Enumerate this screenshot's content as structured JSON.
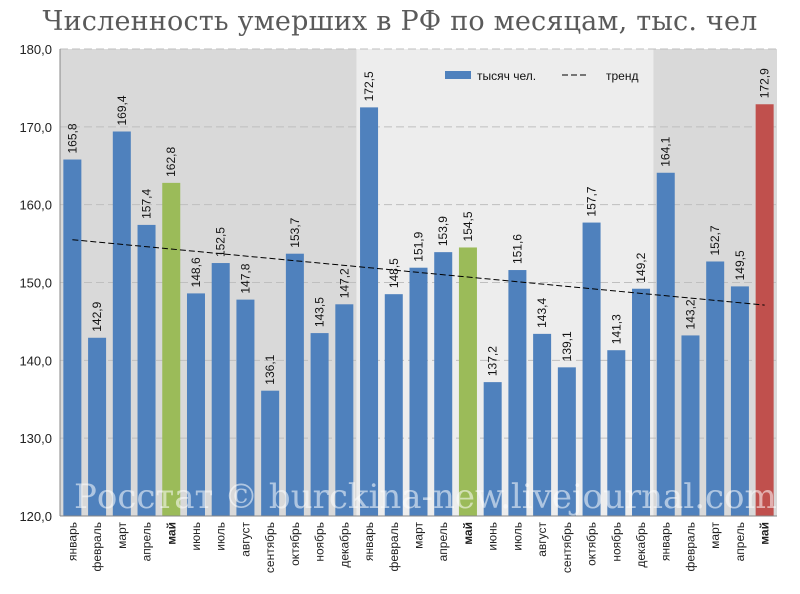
{
  "chart_data": {
    "type": "bar",
    "title": "Численность умерших в РФ по месяцам, тыс. чел",
    "xlabel": "",
    "ylabel": "",
    "ylim": [
      120,
      180
    ],
    "yticks": [
      "120,0",
      "130,0",
      "140,0",
      "150,0",
      "160,0",
      "170,0",
      "180,0"
    ],
    "grid": true,
    "legend_position": "top-right",
    "categories": [
      "январь",
      "февраль",
      "март",
      "апрель",
      "май",
      "июнь",
      "июль",
      "август",
      "сентябрь",
      "октябрь",
      "ноябрь",
      "декабрь",
      "январь",
      "февраль",
      "март",
      "апрель",
      "май",
      "июнь",
      "июль",
      "август",
      "сентябрь",
      "октябрь",
      "ноябрь",
      "декабрь",
      "январь",
      "февраль",
      "март",
      "апрель",
      "май"
    ],
    "bold_categories": [
      4,
      16,
      28
    ],
    "series": [
      {
        "name": "тысяч чел.",
        "values": [
          165.8,
          142.9,
          169.4,
          157.4,
          162.8,
          148.6,
          152.5,
          147.8,
          136.1,
          153.7,
          143.5,
          147.2,
          172.5,
          148.5,
          151.9,
          153.9,
          154.5,
          137.2,
          151.6,
          143.4,
          139.1,
          157.7,
          141.3,
          149.2,
          164.1,
          143.2,
          152.7,
          149.5,
          172.9
        ],
        "labels": [
          "165,8",
          "142,9",
          "169,4",
          "157,4",
          "162,8",
          "148,6",
          "152,5",
          "147,8",
          "136,1",
          "153,7",
          "143,5",
          "147,2",
          "172,5",
          "148,5",
          "151,9",
          "153,9",
          "154,5",
          "137,2",
          "151,6",
          "143,4",
          "139,1",
          "157,7",
          "141,3",
          "149,2",
          "164,1",
          "143,2",
          "152,7",
          "149,5",
          "172,9"
        ]
      },
      {
        "name": "тренд",
        "type": "line",
        "style": "dashed",
        "start": 155.5,
        "end": 147.1
      }
    ],
    "colors": {
      "bar": "#4f81bd",
      "may": "#9bbb59",
      "latest_may": "#c0504d",
      "band_dark": "#d9d9d9",
      "band_light": "#ededed",
      "grid": "#bfbfbf",
      "trend": "#000000"
    },
    "bar_color_index": {
      "may": [
        4,
        16
      ],
      "latest_may": [
        28
      ]
    },
    "year_bands": [
      [
        0,
        11
      ],
      [
        12,
        23
      ],
      [
        24,
        28
      ]
    ],
    "watermark": "Росстат © burckina-new.livejournal.com"
  }
}
